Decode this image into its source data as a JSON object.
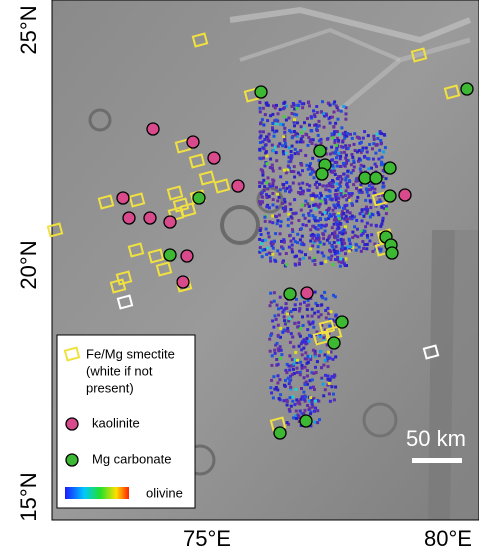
{
  "map": {
    "lat_labels": [
      "25°N",
      "20°N",
      "15°N"
    ],
    "lon_labels": [
      "75°E",
      "80°E"
    ],
    "legend": {
      "smectite": [
        "Fe/Mg smectite",
        "(white if not",
        "present)"
      ],
      "kaolinite": "kaolinite",
      "carbonate": "Mg carbonate",
      "olivine": "olivine"
    },
    "scale_bar": "50 km"
  }
}
